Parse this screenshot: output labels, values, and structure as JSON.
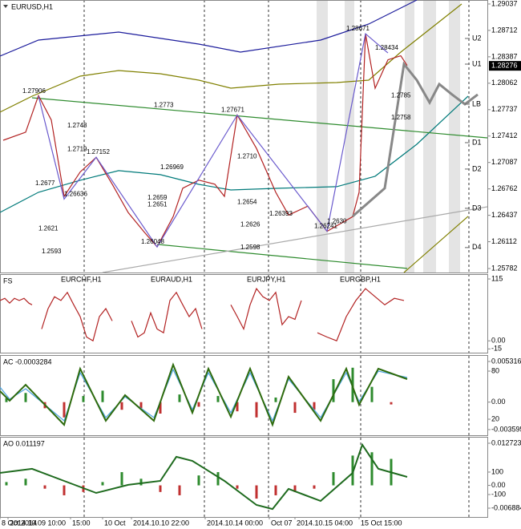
{
  "chart_data": [
    {
      "type": "line",
      "title": "EURUSD,H1",
      "xlim": [
        0,
        152
      ],
      "ylim": [
        1.25733,
        1.29086
      ],
      "yticks": [
        1.29037,
        1.28712,
        1.28387,
        1.28062,
        1.27737,
        1.27412,
        1.27087,
        1.26762,
        1.26437,
        1.26112,
        1.25782
      ],
      "last_price": 1.28276,
      "series": [
        {
          "color": "#1c1c9c",
          "x": [
            0,
            12,
            37,
            62,
            75,
            100,
            115,
            125,
            130
          ],
          "values": [
            1.28396,
            1.28593,
            1.28692,
            1.28544,
            1.28445,
            1.28593,
            1.2879,
            1.28987,
            1.29086
          ]
        },
        {
          "color": "#808000",
          "x": [
            0,
            10,
            25,
            37,
            50,
            62,
            72,
            87,
            105,
            115,
            125,
            144
          ],
          "values": [
            1.27706,
            1.27903,
            1.28149,
            1.28218,
            1.28179,
            1.281,
            1.28001,
            1.28051,
            1.2807,
            1.281,
            1.28445,
            1.29037
          ]
        },
        {
          "color": "#808000",
          "x": [
            126,
            146
          ],
          "values": [
            1.25733,
            1.26424
          ]
        },
        {
          "color": "#007a7a",
          "x": [
            0,
            12,
            25,
            37,
            50,
            62,
            72,
            87,
            105,
            117,
            130,
            146
          ],
          "values": [
            1.26473,
            1.2672,
            1.26868,
            1.26986,
            1.26937,
            1.26818,
            1.26749,
            1.26769,
            1.26789,
            1.26917,
            1.27311,
            1.27903
          ]
        },
        {
          "color": "#2e8b2e",
          "x": [
            10,
            152
          ],
          "values": [
            1.27883,
            1.2739
          ]
        },
        {
          "color": "#2e8b2e",
          "x": [
            49,
            127
          ],
          "values": [
            1.26079,
            1.25783
          ]
        },
        {
          "color": "#aaaaaa",
          "x": [
            32,
            152
          ],
          "values": [
            1.25733,
            1.26542
          ]
        },
        {
          "color": "#b22222",
          "x": [
            1,
            8,
            12,
            16,
            20,
            25,
            30,
            35,
            40,
            45,
            49,
            54,
            57,
            62,
            67,
            70,
            74,
            80,
            86,
            90,
            96,
            102,
            110,
            112,
            114,
            117,
            121,
            125,
            127
          ],
          "values": [
            1.2736,
            1.2746,
            1.2791,
            1.2761,
            1.2667,
            1.2697,
            1.2715,
            1.2682,
            1.2647,
            1.2623,
            1.2605,
            1.2642,
            1.2677,
            1.2687,
            1.2682,
            1.2667,
            1.2767,
            1.2726,
            1.2672,
            1.2644,
            1.2655,
            1.2624,
            1.2642,
            1.2672,
            1.2867,
            1.28,
            1.2835,
            1.284,
            1.2828
          ]
        },
        {
          "color": "#6a5acd",
          "x": [
            12,
            20,
            30,
            49,
            74,
            102,
            114,
            121
          ],
          "values": [
            1.27906,
            1.26636,
            1.27152,
            1.26048,
            1.27671,
            1.26241,
            1.28671,
            1.28434
          ]
        },
        {
          "color": "#888888",
          "width": 3,
          "x": [
            110,
            120,
            126,
            130,
            134,
            137,
            141,
            145,
            149
          ],
          "values": [
            1.26424,
            1.26769,
            1.28297,
            1.281,
            1.27824,
            1.28051,
            1.27923,
            1.27804,
            1.27923
          ]
        }
      ],
      "levels": [
        {
          "label": "U2",
          "value": 1.28613
        },
        {
          "label": "U1",
          "value": 1.28297
        },
        {
          "label": "LB",
          "value": 1.27804
        },
        {
          "label": "D1",
          "value": 1.27331
        },
        {
          "label": "D2",
          "value": 1.27006
        },
        {
          "label": "D3",
          "value": 1.26523
        },
        {
          "label": "D4",
          "value": 1.2604
        }
      ],
      "annotations": [
        {
          "x": 7,
          "value": 1.27906
        },
        {
          "x": 21,
          "value": 1.2748
        },
        {
          "x": 21,
          "value": 1.2719
        },
        {
          "x": 27,
          "value": 1.27152
        },
        {
          "x": 11,
          "value": 1.2677
        },
        {
          "x": 20,
          "value": 1.26636
        },
        {
          "x": 48,
          "value": 1.2773
        },
        {
          "x": 50,
          "value": 1.26969
        },
        {
          "x": 46,
          "value": 1.2659
        },
        {
          "x": 46,
          "value": 1.2651
        },
        {
          "x": 69,
          "value": 1.27671
        },
        {
          "x": 74,
          "value": 1.271,
          "label": "1.2710"
        },
        {
          "x": 74,
          "value": 1.2654
        },
        {
          "x": 84,
          "value": 1.26393
        },
        {
          "x": 75,
          "value": 1.2626
        },
        {
          "x": 75,
          "value": 1.2598
        },
        {
          "x": 98,
          "value": 1.26241
        },
        {
          "x": 12,
          "value": 1.2621
        },
        {
          "x": 13,
          "value": 1.2593
        },
        {
          "x": 102,
          "value": 1.263,
          "label": "1.2630"
        },
        {
          "x": 108,
          "value": 1.28671
        },
        {
          "x": 117,
          "value": 1.28434
        },
        {
          "x": 122,
          "value": 1.2785
        },
        {
          "x": 122,
          "value": 1.2758
        },
        {
          "x": 44,
          "value": 1.26048
        }
      ]
    },
    {
      "type": "line",
      "title": "FS",
      "xlim": [
        0,
        152
      ],
      "ylim": [
        -22,
        124
      ],
      "yticks": [
        115,
        {
          "value": 0,
          "label": "0.00"
        },
        -15
      ],
      "pair_labels": [
        {
          "x": 19,
          "label": "EURCHF,H1"
        },
        {
          "x": 47,
          "label": "EURAUD,H1"
        },
        {
          "x": 77,
          "label": "EURJPY,H1"
        },
        {
          "x": 106,
          "label": "EURGBP,H1"
        }
      ],
      "series": [
        {
          "color": "#b22222",
          "x": [
            0,
            1.5,
            3,
            4.5,
            6,
            7.5,
            9,
            10,
            11,
            13,
            15,
            17,
            19,
            21,
            23,
            25,
            27,
            29,
            31,
            33,
            35,
            37,
            41,
            43,
            45,
            47,
            49,
            51,
            53,
            55,
            57,
            59,
            61,
            63,
            66,
            72,
            74,
            76,
            78,
            80,
            82,
            84,
            86,
            88,
            90,
            92,
            94,
            96,
            99,
            102,
            105,
            108,
            111,
            114,
            117,
            120,
            123,
            126
          ],
          "values": [
            75,
            79,
            70,
            79,
            75,
            79,
            70,
            67,
            null,
            22,
            60,
            82,
            75,
            90,
            67,
            45,
            7,
            0,
            45,
            60,
            37,
            null,
            37,
            7,
            15,
            52,
            22,
            15,
            75,
            90,
            67,
            45,
            60,
            22,
            null,
            67,
            45,
            22,
            67,
            97,
            82,
            75,
            90,
            30,
            45,
            40,
            75,
            null,
            15,
            7,
            0,
            45,
            75,
            97,
            82,
            67,
            79,
            75
          ]
        }
      ]
    },
    {
      "type": "line",
      "title": "AC -0.0003284",
      "xlim": [
        0,
        152
      ],
      "ylim": [
        -0.004329,
        0.006154
      ],
      "yticks": [
        0.005316,
        {
          "value": 0,
          "label": "0.00"
        },
        -0.003595
      ],
      "y2lim": [
        0,
        100
      ],
      "y2ticks": [
        80,
        20
      ],
      "series": [
        {
          "type": "bar",
          "up_color": "#2e8b2e",
          "down_color": "#c03030",
          "x": [
            2,
            8,
            14,
            20,
            26,
            32,
            38,
            44,
            50,
            56,
            62,
            68,
            74,
            80,
            86,
            92,
            98,
            104,
            110,
            116,
            122
          ],
          "values": [
            0.0005,
            0.0012,
            -0.0008,
            -0.002,
            0.0008,
            0.0015,
            -0.001,
            -0.0008,
            -0.0015,
            0.001,
            -0.0006,
            0.0008,
            -0.0012,
            -0.002,
            0.0006,
            -0.0014,
            -0.001,
            0.003,
            0.0045,
            0.002,
            -0.0003
          ]
        },
        {
          "color": "#4aa3df",
          "axis": "y2",
          "x": [
            0,
            3,
            8,
            20,
            25,
            33,
            39,
            48,
            54,
            60,
            65,
            72,
            78,
            85,
            90,
            100,
            108,
            112,
            118,
            127
          ],
          "values": [
            60,
            45,
            58,
            18,
            78,
            22,
            48,
            22,
            82,
            32,
            78,
            28,
            78,
            18,
            70,
            22,
            78,
            42,
            80,
            72
          ]
        },
        {
          "color": "#2e6b0e",
          "width": 2,
          "axis": "y2",
          "x": [
            0,
            3,
            8,
            20,
            25,
            33,
            39,
            48,
            54,
            60,
            65,
            72,
            78,
            85,
            90,
            100,
            108,
            112,
            118,
            127
          ],
          "values": [
            55,
            43,
            63,
            13,
            83,
            18,
            50,
            18,
            88,
            28,
            83,
            23,
            83,
            13,
            73,
            18,
            83,
            38,
            83,
            70
          ]
        }
      ]
    },
    {
      "type": "line",
      "title": "AO 0.011197",
      "xlim": [
        0,
        152
      ],
      "ylim": [
        -0.009546,
        0.014659
      ],
      "yticks": [
        0.012723,
        {
          "value": 0,
          "label": "0.00"
        },
        -0.006884
      ],
      "y2lim": [
        -300,
        414
      ],
      "y2ticks": [
        100,
        -100
      ],
      "xticks": [
        {
          "value": 0,
          "label": "8 Oct 2014"
        },
        {
          "value": 2.5,
          "label": "2014.10.09 10:00"
        },
        {
          "value": 22,
          "label": "15:00"
        },
        {
          "value": 32,
          "label": "10 Oct"
        },
        {
          "value": 41,
          "label": "2014.10.10 22:00"
        },
        {
          "value": 64,
          "label": "2014.10.14 00:00"
        },
        {
          "value": 84,
          "label": "Oct 07"
        },
        {
          "value": 92,
          "label": "2014.10.15 04:00"
        },
        {
          "value": 112,
          "label": "15 Oct 15:00"
        }
      ],
      "series": [
        {
          "type": "bar",
          "up_color": "#2e8b2e",
          "down_color": "#c03030",
          "x": [
            2,
            8,
            14,
            20,
            26,
            32,
            38,
            44,
            50,
            56,
            62,
            68,
            74,
            80,
            86,
            92,
            98,
            104,
            110,
            116,
            122
          ],
          "values": [
            0.001,
            0.002,
            -0.001,
            -0.003,
            -0.002,
            0.001,
            0.004,
            0.002,
            -0.002,
            -0.003,
            0.003,
            0.004,
            -0.001,
            -0.004,
            -0.003,
            -0.002,
            -0.001,
            0.004,
            0.009,
            0.01,
            0.008
          ]
        },
        {
          "color": "#1f6b1f",
          "width": 2,
          "axis": "y2",
          "x": [
            0,
            10,
            20,
            30,
            40,
            50,
            55,
            60,
            70,
            80,
            85,
            90,
            100,
            110,
            113,
            118,
            127
          ],
          "values": [
            93,
            129,
            21,
            -86,
            -14,
            21,
            236,
            200,
            21,
            -193,
            -229,
            -50,
            -157,
            93,
            343,
            129,
            57
          ]
        }
      ]
    }
  ]
}
